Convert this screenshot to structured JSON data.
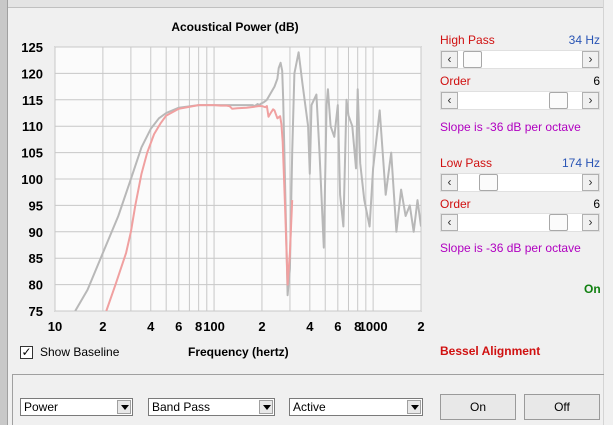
{
  "chart": {
    "title": "Acoustical Power (dB)",
    "xlabel": "Frequency (hertz)"
  },
  "chart_data": {
    "type": "line",
    "title": "Acoustical Power (dB)",
    "xlabel": "Frequency (hertz)",
    "ylabel": "",
    "x_scale": "log",
    "xlim": [
      10,
      2000
    ],
    "ylim": [
      75,
      125
    ],
    "yticks": [
      125,
      120,
      115,
      110,
      105,
      100,
      95,
      90,
      85,
      80,
      75
    ],
    "xtick_labels": [
      "10",
      "2",
      "4",
      "6",
      "8",
      "100",
      "2",
      "4",
      "6",
      "8",
      "1000",
      "2"
    ],
    "grid": true,
    "series": [
      {
        "color": "#b8b8b8",
        "x": [
          13.4,
          16,
          20,
          25,
          30,
          35,
          40,
          45,
          50,
          60,
          80,
          100,
          120,
          150,
          175,
          180,
          188,
          192,
          198,
          205,
          215,
          240,
          250,
          255,
          262,
          268,
          272,
          280,
          290,
          300,
          310,
          320,
          340,
          360,
          390,
          400,
          410,
          440,
          460,
          490,
          510,
          520,
          540,
          570,
          600,
          620,
          650,
          680,
          700,
          740,
          780,
          800,
          830,
          880,
          950,
          1000,
          1100,
          1200,
          1300,
          1400,
          1500,
          1600,
          1700,
          1800,
          1900,
          2000
        ],
        "y": [
          75,
          79,
          86,
          93,
          100,
          106,
          109.5,
          111.5,
          112.5,
          113.5,
          114,
          114,
          114,
          114,
          114,
          113.8,
          114.2,
          114,
          114.3,
          114.5,
          115,
          117.5,
          119,
          121,
          122,
          120.5,
          115,
          98,
          78,
          83,
          105,
          120,
          124,
          118,
          110,
          101,
          114,
          116,
          105,
          87,
          114,
          117,
          110,
          108,
          114,
          97,
          91,
          115,
          112,
          110,
          102,
          117,
          103,
          96,
          91,
          102,
          113,
          97,
          105,
          90,
          98,
          93,
          95,
          90,
          96,
          91
        ]
      },
      {
        "color": "#f0a0a0",
        "x": [
          21,
          24,
          28,
          30,
          32,
          35,
          38,
          42,
          46,
          50,
          60,
          80,
          100,
          110,
          120,
          125,
          130,
          140,
          160,
          180,
          190,
          200,
          210,
          215,
          220,
          228,
          235,
          240,
          245,
          250,
          260,
          265,
          270,
          280,
          290,
          300,
          310
        ],
        "y": [
          75,
          80,
          86,
          90,
          95,
          101,
          105,
          108.5,
          110.5,
          112,
          113.3,
          114,
          114,
          113.9,
          113.9,
          113.8,
          113.3,
          113.4,
          113.5,
          113.7,
          113.8,
          113.8,
          113.6,
          113.8,
          111.8,
          112.6,
          113.2,
          113,
          112.2,
          111.5,
          111.9,
          110.4,
          107,
          94,
          80,
          86,
          96
        ]
      }
    ]
  },
  "high_pass": {
    "label": "High Pass",
    "value": "34 Hz",
    "thumb_fraction": 0.05,
    "order_label": "Order",
    "order_value": "6",
    "order_fraction": 0.85,
    "slope_text": "Slope is -36 dB per octave"
  },
  "low_pass": {
    "label": "Low Pass",
    "value": "174 Hz",
    "thumb_fraction": 0.2,
    "order_label": "Order",
    "order_value": "6",
    "order_fraction": 0.85,
    "slope_text": "Slope is -36 dB per octave"
  },
  "status_on": "On",
  "show_baseline": {
    "label": "Show Baseline",
    "checked": true
  },
  "alignment": "Bessel Alignment",
  "dropdowns": {
    "plot": "Power",
    "filter": "Band Pass",
    "mode": "Active"
  },
  "buttons": {
    "on": "On",
    "off": "Off"
  }
}
